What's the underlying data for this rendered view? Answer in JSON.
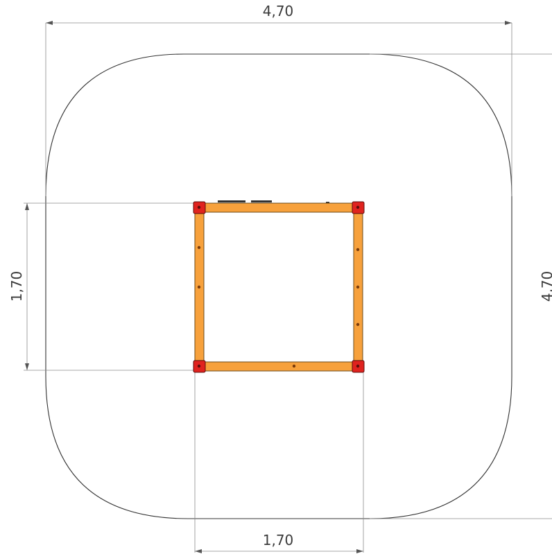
{
  "dimensions": {
    "top_width": "4,70",
    "right_height": "4,70",
    "left_height": "1,70",
    "bottom_width": "1,70"
  },
  "colors": {
    "frame_fill": "#f7a13c",
    "frame_stroke": "#6b4a1a",
    "corner_fill": "#e0231f",
    "bolt": "#7a3b0c",
    "line": "#333333",
    "dimension_line": "#8a8a8a"
  }
}
